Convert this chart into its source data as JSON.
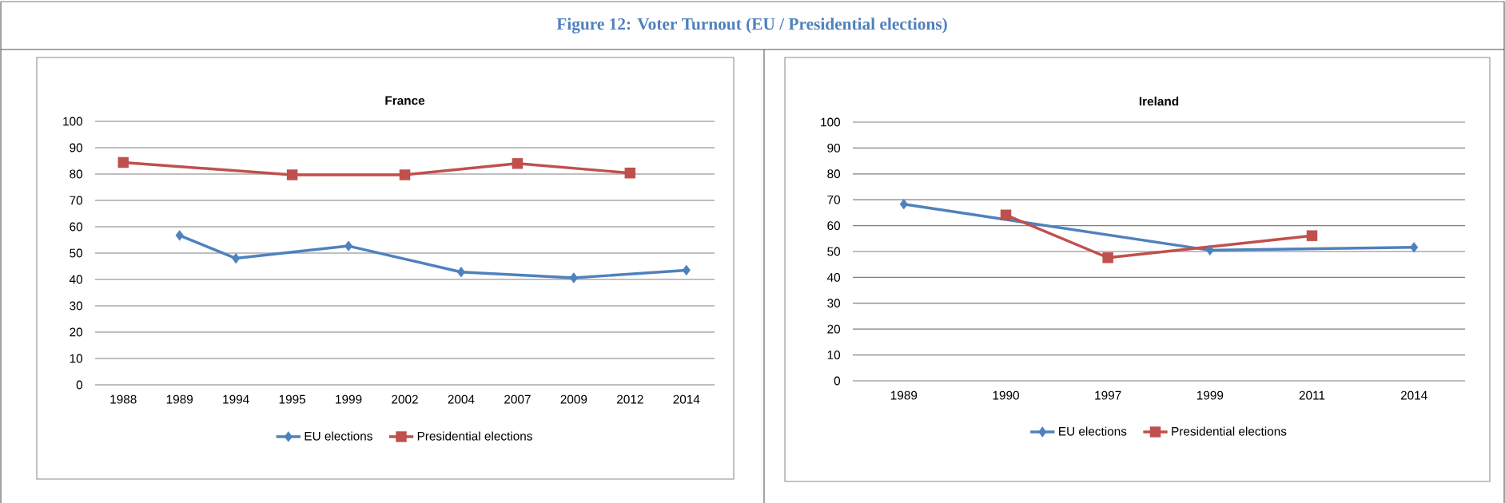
{
  "chart_data": [
    {
      "type": "line",
      "title": "France",
      "annotations": [
        "Figure 12: Voter Turnout (EU / Presidential elections)"
      ],
      "categories": [
        "1988",
        "1989",
        "1994",
        "1995",
        "1999",
        "2002",
        "2004",
        "2007",
        "2009",
        "2012",
        "2014"
      ],
      "series": [
        {
          "name": "EU elections",
          "color": "#4f81bd",
          "marker": "diamond",
          "values": [
            null,
            56.7,
            48,
            null,
            52.7,
            null,
            42.8,
            null,
            40.6,
            null,
            43.5
          ]
        },
        {
          "name": "Presidential elections",
          "color": "#c0504d",
          "marker": "square",
          "values": [
            84.4,
            null,
            null,
            79.7,
            null,
            79.7,
            null,
            84,
            null,
            80.4,
            null
          ]
        }
      ],
      "ylim": [
        0,
        100
      ],
      "yticks": [
        0,
        10,
        20,
        30,
        40,
        50,
        60,
        70,
        80,
        90,
        100
      ],
      "grid": "y",
      "legend": "bottom"
    },
    {
      "type": "line",
      "title": "Ireland",
      "categories": [
        "1989",
        "1990",
        "1997",
        "1999",
        "2011",
        "2014"
      ],
      "series": [
        {
          "name": "EU elections",
          "color": "#4f81bd",
          "marker": "diamond",
          "values": [
            68.3,
            null,
            null,
            50.5,
            null,
            51.6
          ]
        },
        {
          "name": "Presidential elections",
          "color": "#c0504d",
          "marker": "square",
          "values": [
            null,
            64.1,
            47.6,
            null,
            56.1,
            null
          ]
        }
      ],
      "ylim": [
        0,
        100
      ],
      "yticks": [
        0,
        10,
        20,
        30,
        40,
        50,
        60,
        70,
        80,
        90,
        100
      ],
      "grid": "y",
      "legend": "bottom"
    }
  ]
}
